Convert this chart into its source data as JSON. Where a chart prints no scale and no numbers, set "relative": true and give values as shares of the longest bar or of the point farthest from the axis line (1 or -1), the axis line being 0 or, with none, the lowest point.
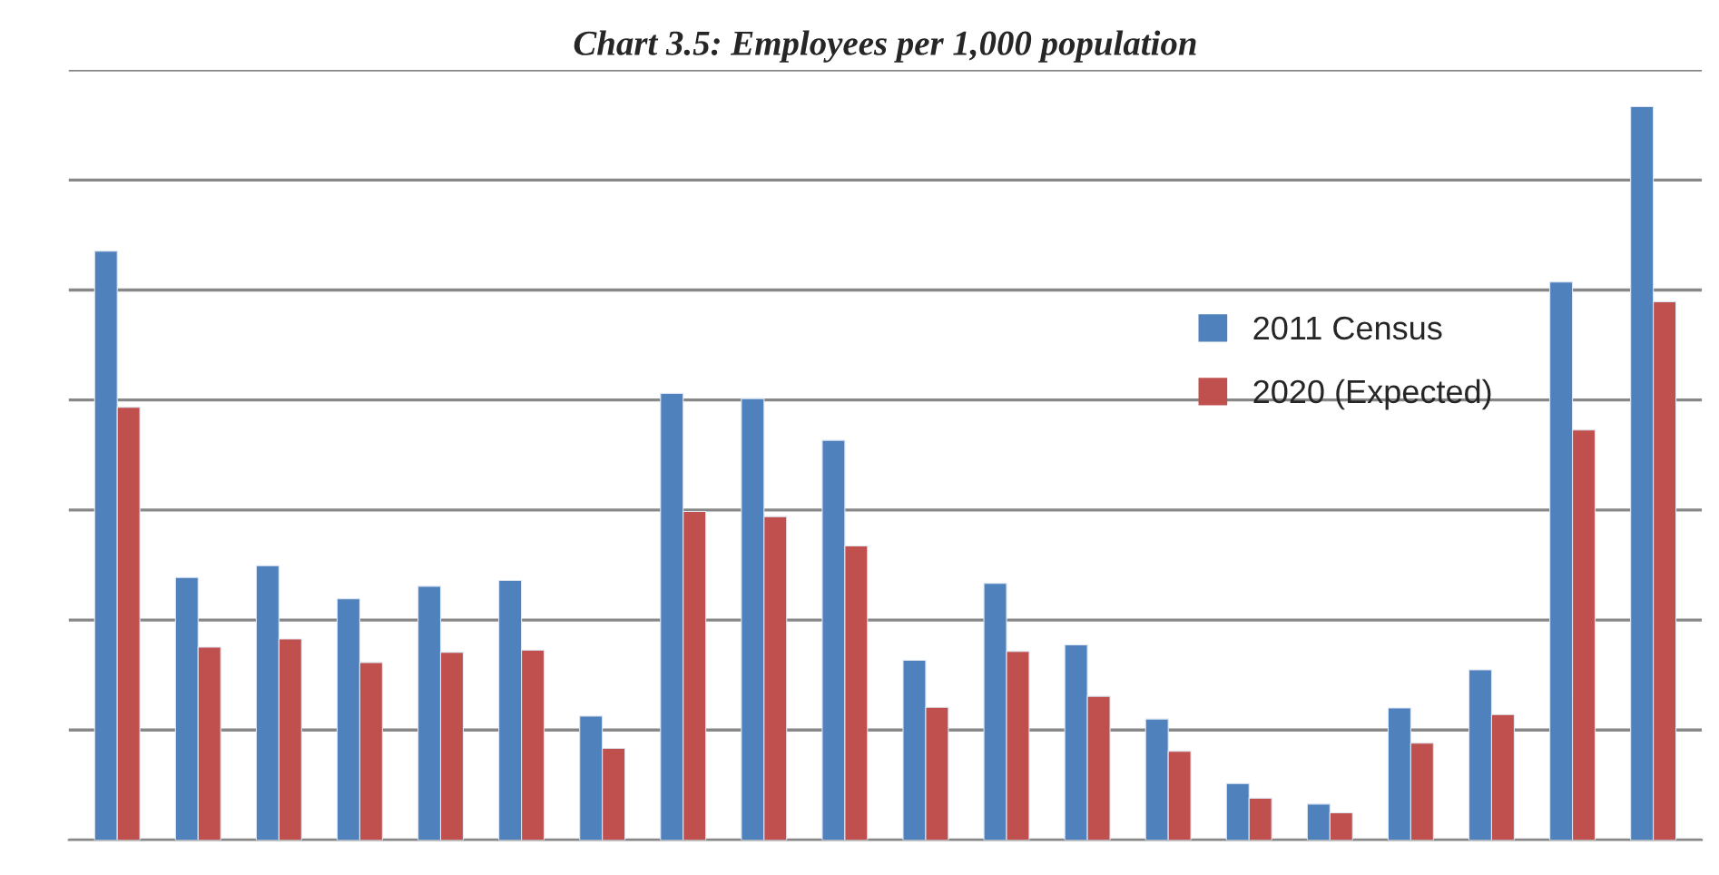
{
  "chart_data": {
    "type": "bar",
    "title": "Chart 3.5: Employees per 1,000 population",
    "relative": true,
    "categories": [
      null,
      null,
      null,
      null,
      null,
      null,
      null,
      null,
      null,
      null,
      null,
      null,
      null,
      null,
      null,
      null,
      null,
      null,
      null,
      null
    ],
    "series": [
      {
        "name": "2011 Census",
        "color": "#4f81bd",
        "values": [
          0.803,
          0.358,
          0.374,
          0.329,
          0.346,
          0.354,
          0.169,
          0.609,
          0.602,
          0.545,
          0.245,
          0.35,
          0.266,
          0.165,
          0.077,
          0.049,
          0.18,
          0.232,
          0.761,
          1
        ]
      },
      {
        "name": "2020 (Expected)",
        "color": "#c0504d",
        "values": [
          0.59,
          0.263,
          0.274,
          0.242,
          0.256,
          0.259,
          0.125,
          0.448,
          0.441,
          0.401,
          0.181,
          0.257,
          0.196,
          0.121,
          0.057,
          0.037,
          0.132,
          0.171,
          0.559,
          0.734
        ]
      }
    ],
    "grid": "y",
    "legend": "right"
  }
}
